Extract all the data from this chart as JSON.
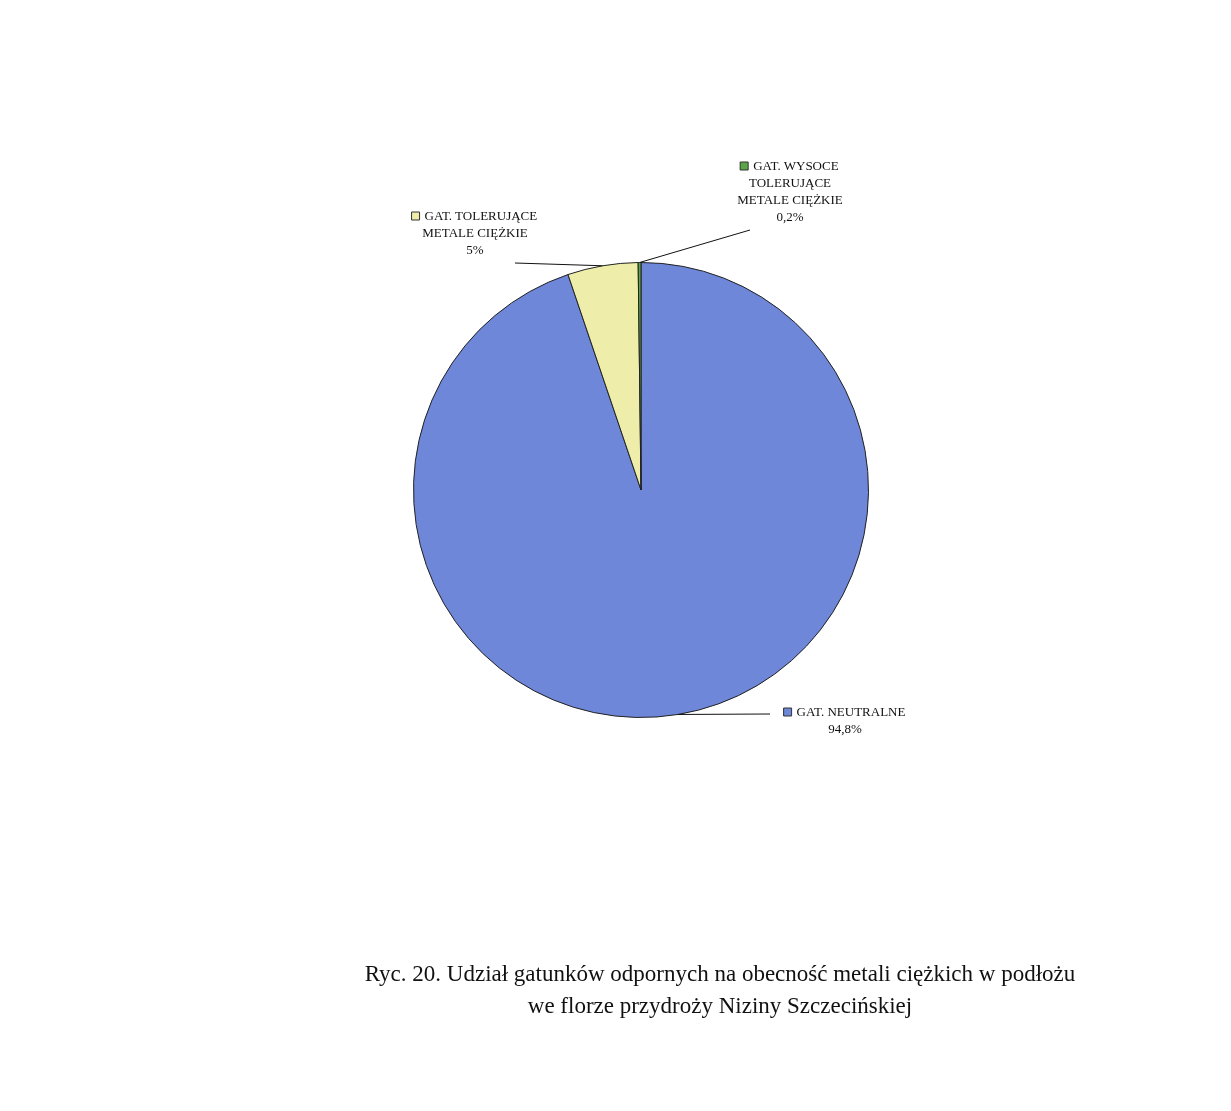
{
  "chart_data": {
    "type": "pie",
    "title": "Ryc. 20.  Udział gatunków odpornych na obecność metali ciężkich w podłożu\nwe florze przydroży Niziny Szczecińskiej",
    "categories": [
      "GAT. NEUTRALNE",
      "GAT. TOLERUJĄCE METALE CIĘŻKIE",
      "GAT. WYSOCE TOLERUJĄCE METALE CIĘŻKIE"
    ],
    "values": [
      94.8,
      5,
      0.2
    ],
    "colors": [
      "#6e87d8",
      "#eeeeaa",
      "#5aa545"
    ],
    "value_labels": [
      "94,8%",
      "5%",
      "0,2%"
    ],
    "legend": "right"
  }
}
